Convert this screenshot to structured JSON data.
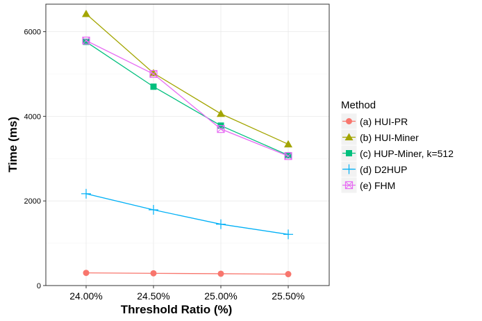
{
  "chart_data": {
    "type": "line",
    "xlabel": "Threshold Ratio (%)",
    "ylabel": "Time (ms)",
    "categories": [
      "24.00%",
      "24.50%",
      "25.00%",
      "25.50%"
    ],
    "ylim": [
      0,
      6650
    ],
    "yticks": [
      0,
      2000,
      4000,
      6000
    ],
    "grid": true,
    "legend": {
      "title": "Method",
      "position": "right"
    },
    "series": [
      {
        "name": "(a) HUI-PR",
        "color": "#F8766D",
        "marker": "circle",
        "values": [
          300,
          290,
          280,
          270
        ]
      },
      {
        "name": "(b) HUI-Miner",
        "color": "#A3A500",
        "marker": "triangle",
        "values": [
          6420,
          5020,
          4060,
          3340
        ]
      },
      {
        "name": "(c) HUP-Miner, k=512",
        "color": "#00BF7D",
        "marker": "square",
        "values": [
          5760,
          4700,
          3780,
          3080
        ]
      },
      {
        "name": "(d) D2HUP",
        "color": "#00B0F6",
        "marker": "plus",
        "values": [
          2170,
          1790,
          1450,
          1210
        ]
      },
      {
        "name": "(e) FHM",
        "color": "#E76BF3",
        "marker": "boxcross",
        "values": [
          5790,
          5000,
          3700,
          3060
        ]
      }
    ]
  }
}
